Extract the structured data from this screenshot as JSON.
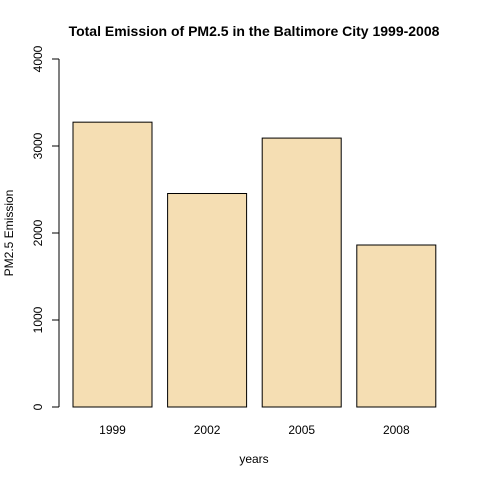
{
  "chart_data": {
    "type": "bar",
    "title": "Total Emission of PM2.5 in the Baltimore City 1999-2008",
    "xlabel": "years",
    "ylabel": "PM2.5 Emission",
    "categories": [
      "1999",
      "2002",
      "2005",
      "2008"
    ],
    "values": [
      3274,
      2454,
      3091,
      1862
    ],
    "ylim": [
      0,
      4000
    ],
    "yticks": [
      "0",
      "1000",
      "2000",
      "3000",
      "4000"
    ],
    "bar_color": "#f5deb3",
    "grid": false,
    "legend": "none"
  }
}
